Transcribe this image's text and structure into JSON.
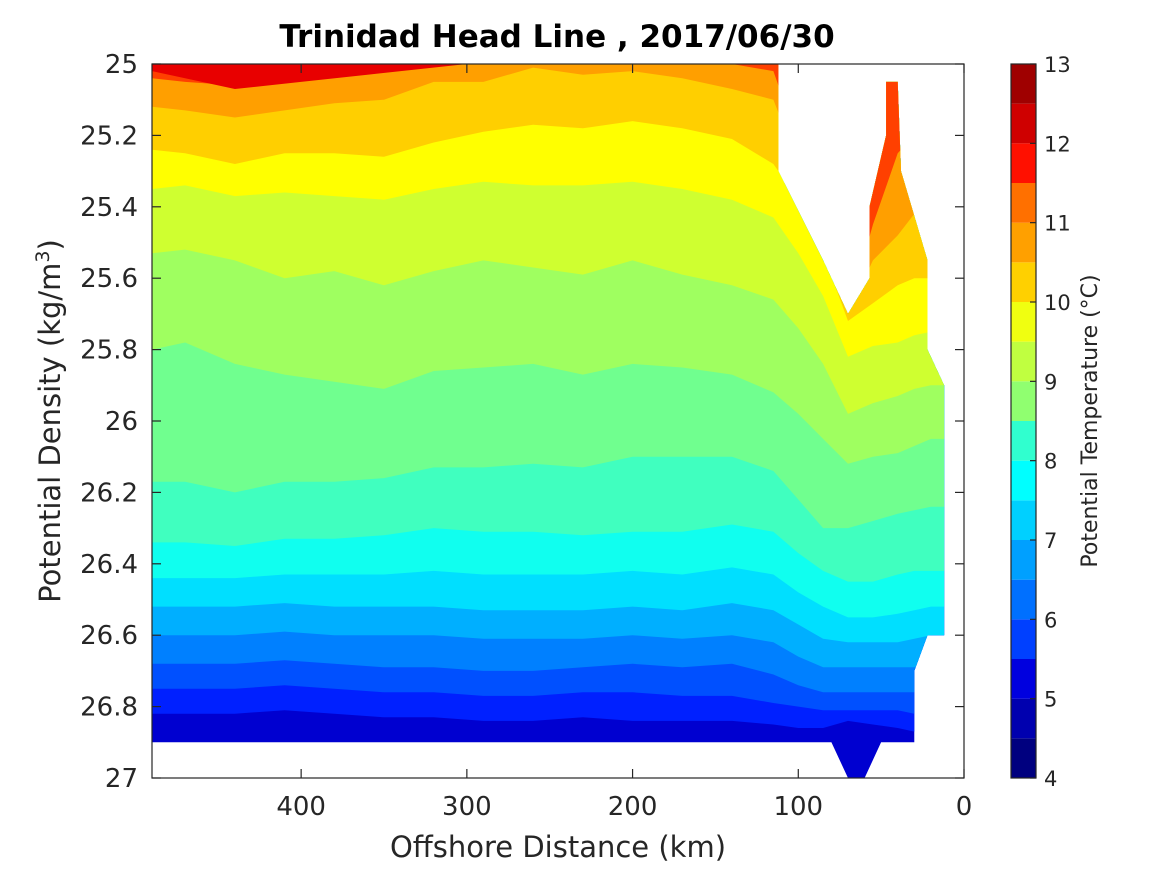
{
  "chart_data": {
    "type": "contour",
    "title": "Trinidad Head Line , 2017/06/30",
    "xlabel": "Offshore Distance (km)",
    "ylabel": "Potential Density (kg/m",
    "ylabel_sup": "3",
    "ylabel_close": ")",
    "xlim": [
      490,
      0
    ],
    "ylim": [
      25,
      27
    ],
    "y_reversed": true,
    "x_reversed": true,
    "xticks": [
      400,
      300,
      200,
      100,
      0
    ],
    "xtick_labels": [
      "400",
      "300",
      "200",
      "100",
      "0"
    ],
    "yticks": [
      25,
      25.2,
      25.4,
      25.6,
      25.8,
      26,
      26.2,
      26.4,
      26.6,
      26.8,
      27
    ],
    "ytick_labels": [
      "25",
      "25.2",
      "25.4",
      "25.6",
      "25.8",
      "26",
      "26.2",
      "26.4",
      "26.6",
      "26.8",
      "27"
    ],
    "colorbar": {
      "label": "Potential Temperature (°C)",
      "range": [
        4,
        13
      ],
      "ticks": [
        "13",
        "12",
        "11",
        "10",
        "9",
        "8",
        "7",
        "6",
        "5",
        "4"
      ],
      "levels": [
        4,
        4.5,
        5,
        5.5,
        6,
        6.5,
        7,
        7.5,
        8,
        8.5,
        9,
        9.5,
        10,
        10.5,
        11,
        11.5,
        12,
        12.5,
        13
      ],
      "colors": [
        "#00008F",
        "#0000BF",
        "#0000EF",
        "#0020FF",
        "#0050FF",
        "#0080FF",
        "#00AFFF",
        "#00DFFF",
        "#10FFEF",
        "#40FFBF",
        "#70FF8F",
        "#9FFF60",
        "#CFFF30",
        "#FFFF00",
        "#FFCF00",
        "#FF9F00",
        "#FF7000",
        "#FF4000",
        "#FF1000",
        "#DF0000",
        "#AF0000"
      ]
    },
    "isotherm_depths": {
      "x": [
        490,
        470,
        440,
        410,
        380,
        350,
        320,
        290,
        260,
        230,
        200,
        170,
        140,
        115,
        100,
        85,
        70,
        55,
        40,
        30,
        20
      ],
      "t5.5": [
        26.82,
        26.82,
        26.82,
        26.81,
        26.82,
        26.83,
        26.83,
        26.84,
        26.84,
        26.83,
        26.84,
        26.84,
        26.84,
        26.85,
        26.86,
        26.86,
        26.84,
        26.85,
        26.86,
        26.87,
        26.87
      ],
      "t6.0": [
        26.75,
        26.75,
        26.75,
        26.74,
        26.75,
        26.76,
        26.76,
        26.77,
        26.77,
        26.76,
        26.76,
        26.77,
        26.77,
        26.79,
        26.8,
        26.81,
        26.81,
        26.81,
        26.81,
        26.82,
        26.82
      ],
      "t6.5": [
        26.68,
        26.68,
        26.68,
        26.67,
        26.68,
        26.69,
        26.69,
        26.7,
        26.7,
        26.69,
        26.68,
        26.69,
        26.68,
        26.71,
        26.74,
        26.76,
        26.76,
        26.76,
        26.76,
        26.76,
        26.77
      ],
      "t7.0": [
        26.6,
        26.6,
        26.6,
        26.59,
        26.6,
        26.6,
        26.6,
        26.61,
        26.61,
        26.61,
        26.6,
        26.61,
        26.6,
        26.62,
        26.66,
        26.69,
        26.69,
        26.69,
        26.69,
        26.69,
        26.68
      ],
      "t7.5": [
        26.52,
        26.52,
        26.52,
        26.51,
        26.52,
        26.52,
        26.52,
        26.53,
        26.53,
        26.53,
        26.52,
        26.53,
        26.51,
        26.53,
        26.57,
        26.61,
        26.62,
        26.62,
        26.62,
        26.61,
        26.6
      ],
      "t8.0": [
        26.44,
        26.44,
        26.44,
        26.43,
        26.43,
        26.43,
        26.42,
        26.43,
        26.43,
        26.43,
        26.42,
        26.43,
        26.41,
        26.43,
        26.48,
        26.52,
        26.55,
        26.55,
        26.54,
        26.53,
        26.52
      ],
      "t8.5": [
        26.34,
        26.34,
        26.35,
        26.33,
        26.33,
        26.32,
        26.3,
        26.31,
        26.31,
        26.32,
        26.31,
        26.31,
        26.29,
        26.31,
        26.37,
        26.42,
        26.45,
        26.45,
        26.43,
        26.42,
        26.42
      ],
      "t9.0": [
        26.17,
        26.17,
        26.2,
        26.17,
        26.17,
        26.16,
        26.13,
        26.13,
        26.12,
        26.13,
        26.1,
        26.1,
        26.1,
        26.14,
        26.22,
        26.3,
        26.3,
        26.28,
        26.26,
        26.25,
        26.24
      ],
      "t9.5": [
        25.8,
        25.78,
        25.84,
        25.87,
        25.89,
        25.91,
        25.86,
        25.85,
        25.84,
        25.87,
        25.84,
        25.85,
        25.87,
        25.92,
        25.98,
        26.05,
        26.12,
        26.1,
        26.09,
        26.07,
        26.05
      ],
      "t10.0": [
        25.53,
        25.52,
        25.55,
        25.6,
        25.58,
        25.62,
        25.58,
        25.55,
        25.57,
        25.59,
        25.55,
        25.59,
        25.62,
        25.66,
        25.74,
        25.84,
        25.98,
        25.95,
        25.93,
        25.91,
        25.9
      ],
      "t10.5": [
        25.35,
        25.34,
        25.37,
        25.36,
        25.37,
        25.38,
        25.35,
        25.33,
        25.34,
        25.34,
        25.33,
        25.35,
        25.38,
        25.43,
        25.53,
        25.65,
        25.82,
        25.79,
        25.78,
        25.76,
        25.75
      ],
      "t11.0": [
        25.24,
        25.25,
        25.28,
        25.25,
        25.25,
        25.26,
        25.22,
        25.19,
        25.17,
        25.18,
        25.16,
        25.18,
        25.21,
        25.28,
        25.38,
        25.53,
        25.72,
        25.67,
        25.62,
        25.6,
        25.6
      ],
      "t11.5": [
        25.12,
        25.13,
        25.15,
        25.13,
        25.11,
        25.1,
        25.05,
        25.05,
        25.01,
        25.03,
        25.02,
        25.04,
        25.07,
        25.1,
        25.28,
        25.45,
        25.7,
        25.55,
        25.48,
        25.42,
        25.4
      ],
      "t12.0": [
        25.04,
        25.05,
        25.06,
        25.03,
        25.01,
        25.0,
        25.0,
        25.0,
        25.0,
        25.0,
        25.0,
        25.0,
        25.0,
        25.02,
        25.22,
        25.4,
        25.7,
        25.45,
        25.25,
        25.2,
        25.2
      ]
    }
  }
}
